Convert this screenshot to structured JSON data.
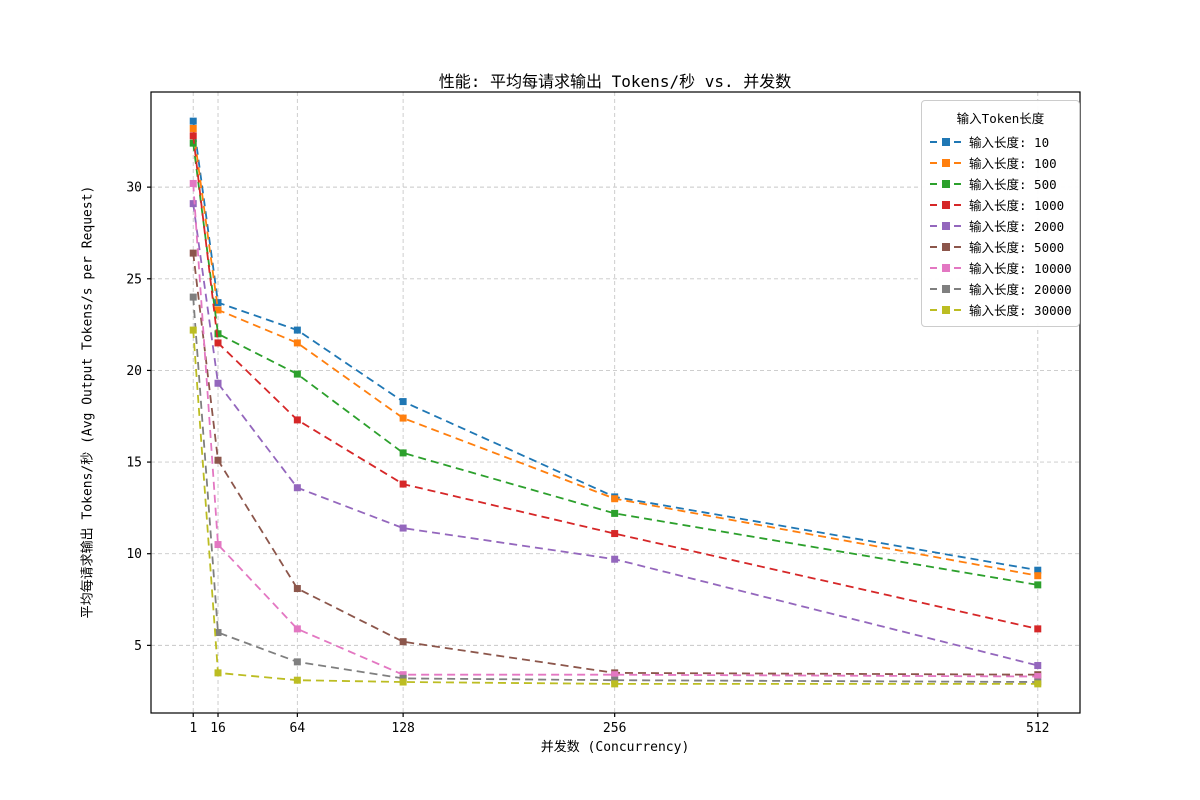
{
  "title": "性能: 平均每请求输出 Tokens/秒 vs. 并发数",
  "chart_data": {
    "type": "line",
    "x": [
      1,
      16,
      64,
      128,
      256,
      512
    ],
    "xlabel": "并发数 (Concurrency)",
    "ylabel": "平均每请求输出 Tokens/秒 (Avg Output Tokens/s per Request)",
    "xticks": [
      1,
      16,
      64,
      128,
      256,
      512
    ],
    "yticks": [
      5,
      10,
      15,
      20,
      25,
      30
    ],
    "xlim": [
      -24.55,
      537.55
    ],
    "ylim": [
      1.31,
      35.19
    ],
    "grid": true,
    "line_style": "dashed",
    "marker": "square",
    "legend_title": "输入Token长度",
    "legend_position": "upper right",
    "series": [
      {
        "name": "输入长度: 10",
        "color": "#1f77b4",
        "values": [
          33.6,
          23.7,
          22.2,
          18.3,
          13.1,
          9.1
        ]
      },
      {
        "name": "输入长度: 100",
        "color": "#ff7f0e",
        "values": [
          33.2,
          23.3,
          21.5,
          17.4,
          13.0,
          8.8
        ]
      },
      {
        "name": "输入长度: 500",
        "color": "#2ca02c",
        "values": [
          32.4,
          22.0,
          19.8,
          15.5,
          12.2,
          8.3
        ]
      },
      {
        "name": "输入长度: 1000",
        "color": "#d62728",
        "values": [
          32.8,
          21.5,
          17.3,
          13.8,
          11.1,
          5.9
        ]
      },
      {
        "name": "输入长度: 2000",
        "color": "#9467bd",
        "values": [
          29.1,
          19.3,
          13.6,
          11.4,
          9.7,
          3.9
        ]
      },
      {
        "name": "输入长度: 5000",
        "color": "#8c564b",
        "values": [
          26.4,
          15.1,
          8.1,
          5.2,
          3.5,
          3.4
        ]
      },
      {
        "name": "输入长度: 10000",
        "color": "#e377c2",
        "values": [
          30.2,
          10.5,
          5.9,
          3.4,
          3.4,
          3.3
        ]
      },
      {
        "name": "输入长度: 20000",
        "color": "#7f7f7f",
        "values": [
          24.0,
          5.7,
          4.1,
          3.2,
          3.1,
          3.0
        ]
      },
      {
        "name": "输入长度: 30000",
        "color": "#bcbd22",
        "values": [
          22.2,
          3.5,
          3.1,
          3.0,
          2.9,
          2.9
        ]
      }
    ],
    "axes_color": "#000000",
    "grid_color": "#c8c8c8"
  }
}
